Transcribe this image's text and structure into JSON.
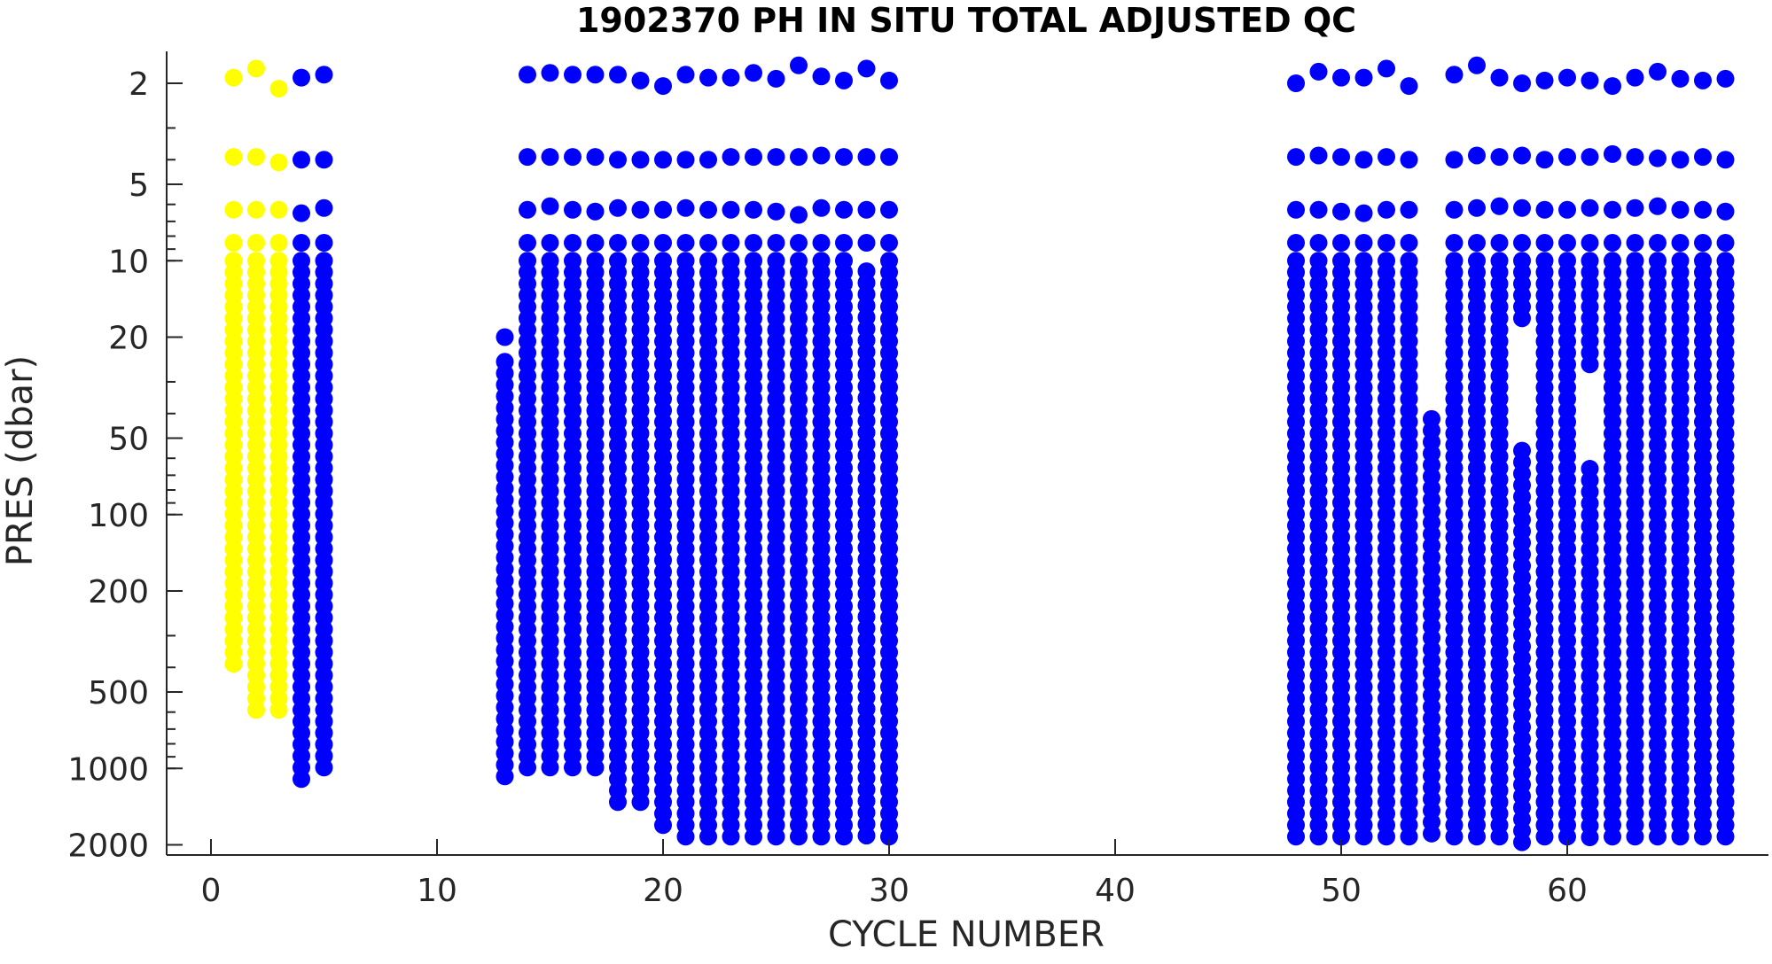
{
  "chart_data": {
    "type": "scatter",
    "title": "1902370  PH IN SITU TOTAL ADJUSTED QC",
    "xlabel": "CYCLE NUMBER",
    "ylabel": "PRES (dbar)",
    "xlim": [
      -2,
      69
    ],
    "ylim": [
      1.5,
      2200
    ],
    "y_scale": "log",
    "y_reversed": true,
    "grid": false,
    "x_ticks": [
      0,
      10,
      20,
      30,
      40,
      50,
      60
    ],
    "y_ticks": [
      2,
      5,
      10,
      20,
      50,
      100,
      200,
      500,
      1000,
      2000
    ],
    "colors": {
      "qc_yellow": "#FFFF00",
      "qc_blue": "#0000FF"
    },
    "profiles": [
      {
        "cycle": 1,
        "color": "qc_yellow",
        "shallow": [
          1.9,
          3.9,
          6.3,
          8.5
        ],
        "top": 10,
        "bottom": 420
      },
      {
        "cycle": 2,
        "color": "qc_yellow",
        "shallow": [
          1.75,
          3.9,
          6.3,
          8.5
        ],
        "top": 10,
        "bottom": 630
      },
      {
        "cycle": 3,
        "color": "qc_yellow",
        "shallow": [
          2.1,
          4.1,
          6.3,
          8.5
        ],
        "top": 10,
        "bottom": 640
      },
      {
        "cycle": 4,
        "color": "qc_blue",
        "shallow": [
          1.9,
          4.0,
          6.5,
          8.5
        ],
        "top": 10,
        "bottom": 1120
      },
      {
        "cycle": 5,
        "color": "qc_blue",
        "shallow": [
          1.85,
          4.0,
          6.2,
          8.5
        ],
        "top": 10,
        "bottom": 1080
      },
      {
        "cycle": 13,
        "color": "qc_blue",
        "shallow": [
          20
        ],
        "top": 25,
        "bottom": 1130
      },
      {
        "cycle": 14,
        "color": "qc_blue",
        "shallow": [
          1.85,
          3.9,
          6.3,
          8.5
        ],
        "top": 10,
        "bottom": 1080
      },
      {
        "cycle": 15,
        "color": "qc_blue",
        "shallow": [
          1.82,
          3.9,
          6.1,
          8.5
        ],
        "top": 10,
        "bottom": 1080
      },
      {
        "cycle": 16,
        "color": "qc_blue",
        "shallow": [
          1.85,
          3.9,
          6.3,
          8.5
        ],
        "top": 10,
        "bottom": 1080
      },
      {
        "cycle": 17,
        "color": "qc_blue",
        "shallow": [
          1.85,
          3.9,
          6.4,
          8.5
        ],
        "top": 10,
        "bottom": 1080
      },
      {
        "cycle": 18,
        "color": "qc_blue",
        "shallow": [
          1.85,
          4.0,
          6.2,
          8.5
        ],
        "top": 10,
        "bottom": 1450
      },
      {
        "cycle": 19,
        "color": "qc_blue",
        "shallow": [
          1.95,
          4.0,
          6.3,
          8.5
        ],
        "top": 10,
        "bottom": 1450
      },
      {
        "cycle": 20,
        "color": "qc_blue",
        "shallow": [
          2.05,
          4.0,
          6.3,
          8.5
        ],
        "top": 10,
        "bottom": 1700
      },
      {
        "cycle": 21,
        "color": "qc_blue",
        "shallow": [
          1.85,
          4.0,
          6.2,
          8.5
        ],
        "top": 10,
        "bottom": 1920
      },
      {
        "cycle": 22,
        "color": "qc_blue",
        "shallow": [
          1.9,
          4.0,
          6.3,
          8.5
        ],
        "top": 10,
        "bottom": 1920
      },
      {
        "cycle": 23,
        "color": "qc_blue",
        "shallow": [
          1.9,
          3.9,
          6.3,
          8.5
        ],
        "top": 10,
        "bottom": 2000
      },
      {
        "cycle": 24,
        "color": "qc_blue",
        "shallow": [
          1.82,
          3.9,
          6.3,
          8.5
        ],
        "top": 10,
        "bottom": 2000
      },
      {
        "cycle": 25,
        "color": "qc_blue",
        "shallow": [
          1.92,
          3.9,
          6.4,
          8.5
        ],
        "top": 10,
        "bottom": 2000
      },
      {
        "cycle": 26,
        "color": "qc_blue",
        "shallow": [
          1.7,
          3.9,
          6.6,
          8.5
        ],
        "top": 10,
        "bottom": 2000
      },
      {
        "cycle": 27,
        "color": "qc_blue",
        "shallow": [
          1.88,
          3.85,
          6.2,
          8.5
        ],
        "top": 10,
        "bottom": 2000
      },
      {
        "cycle": 28,
        "color": "qc_blue",
        "shallow": [
          1.95,
          3.9,
          6.3,
          8.5
        ],
        "top": 10,
        "bottom": 2000
      },
      {
        "cycle": 29,
        "color": "qc_blue",
        "shallow": [
          1.75,
          3.9,
          6.3,
          8.5
        ],
        "top": 11,
        "bottom": 2000
      },
      {
        "cycle": 30,
        "color": "qc_blue",
        "shallow": [
          1.95,
          3.9,
          6.3,
          8.5
        ],
        "top": 10,
        "bottom": 2000
      },
      {
        "cycle": 48,
        "color": "qc_blue",
        "shallow": [
          2.0,
          3.9,
          6.3,
          8.5
        ],
        "top": 10,
        "bottom": 2000
      },
      {
        "cycle": 49,
        "color": "qc_blue",
        "shallow": [
          1.8,
          3.85,
          6.3,
          8.5
        ],
        "top": 10,
        "bottom": 2000
      },
      {
        "cycle": 50,
        "color": "qc_blue",
        "shallow": [
          1.9,
          3.9,
          6.4,
          8.5
        ],
        "top": 10,
        "bottom": 2000
      },
      {
        "cycle": 51,
        "color": "qc_blue",
        "shallow": [
          1.9,
          4.0,
          6.5,
          8.5
        ],
        "top": 10,
        "bottom": 2000
      },
      {
        "cycle": 52,
        "color": "qc_blue",
        "shallow": [
          1.75,
          3.9,
          6.3,
          8.5
        ],
        "top": 10,
        "bottom": 2000
      },
      {
        "cycle": 53,
        "color": "qc_blue",
        "shallow": [
          2.05,
          4.0,
          6.3,
          8.5
        ],
        "top": 10,
        "bottom": 2000
      },
      {
        "cycle": 54,
        "color": "qc_blue",
        "shallow": [],
        "top": 42,
        "bottom": 2000
      },
      {
        "cycle": 55,
        "color": "qc_blue",
        "shallow": [
          1.85,
          4.0,
          6.3,
          8.5
        ],
        "top": 10,
        "bottom": 2000
      },
      {
        "cycle": 56,
        "color": "qc_blue",
        "shallow": [
          1.7,
          3.85,
          6.2,
          8.5
        ],
        "top": 10,
        "bottom": 2000
      },
      {
        "cycle": 57,
        "color": "qc_blue",
        "shallow": [
          1.9,
          3.9,
          6.1,
          8.5
        ],
        "top": 10,
        "bottom": 2000
      },
      {
        "cycle": 58,
        "color": "qc_blue",
        "shallow": [
          2.0,
          3.85,
          6.2,
          8.5
        ],
        "top": 10,
        "bottom": 17,
        "segments": [
          [
            56,
            2000
          ]
        ]
      },
      {
        "cycle": 59,
        "color": "qc_blue",
        "shallow": [
          1.95,
          4.0,
          6.3,
          8.5
        ],
        "top": 10,
        "bottom": 2000
      },
      {
        "cycle": 60,
        "color": "qc_blue",
        "shallow": [
          1.9,
          3.9,
          6.3,
          8.5
        ],
        "top": 10,
        "bottom": 2000
      },
      {
        "cycle": 61,
        "color": "qc_blue",
        "shallow": [
          1.95,
          3.9,
          6.2,
          8.5
        ],
        "top": 10,
        "bottom": 27,
        "segments": [
          [
            66,
            2000
          ]
        ]
      },
      {
        "cycle": 62,
        "color": "qc_blue",
        "shallow": [
          2.05,
          3.8,
          6.3,
          8.5
        ],
        "top": 10,
        "bottom": 2000
      },
      {
        "cycle": 63,
        "color": "qc_blue",
        "shallow": [
          1.9,
          3.9,
          6.2,
          8.5
        ],
        "top": 10,
        "bottom": 2000
      },
      {
        "cycle": 64,
        "color": "qc_blue",
        "shallow": [
          1.8,
          3.95,
          6.1,
          8.5
        ],
        "top": 10,
        "bottom": 2000
      },
      {
        "cycle": 65,
        "color": "qc_blue",
        "shallow": [
          1.92,
          4.0,
          6.3,
          8.5
        ],
        "top": 10,
        "bottom": 2000
      },
      {
        "cycle": 66,
        "color": "qc_blue",
        "shallow": [
          1.95,
          3.9,
          6.3,
          8.5
        ],
        "top": 10,
        "bottom": 2000
      },
      {
        "cycle": 67,
        "color": "qc_blue",
        "shallow": [
          1.92,
          4.0,
          6.4,
          8.5
        ],
        "top": 10,
        "bottom": 2000
      }
    ]
  }
}
